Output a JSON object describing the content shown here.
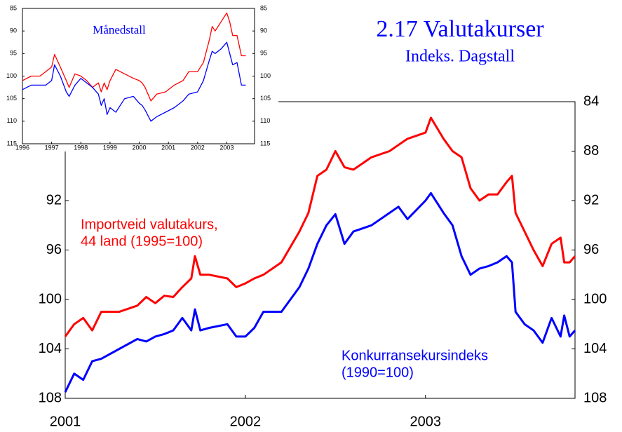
{
  "chart_data": [
    {
      "type": "line",
      "title": "2.17 Valutakurser",
      "subtitle": "Indeks. Dagstall",
      "x": [
        2001.0,
        2001.05,
        2001.1,
        2001.15,
        2001.2,
        2001.3,
        2001.4,
        2001.45,
        2001.5,
        2001.55,
        2001.6,
        2001.65,
        2001.7,
        2001.72,
        2001.75,
        2001.8,
        2001.9,
        2001.95,
        2002.0,
        2002.05,
        2002.1,
        2002.2,
        2002.3,
        2002.35,
        2002.4,
        2002.45,
        2002.5,
        2002.55,
        2002.6,
        2002.7,
        2002.8,
        2002.85,
        2002.9,
        2003.0,
        2003.03,
        2003.1,
        2003.15,
        2003.2,
        2003.25,
        2003.3,
        2003.35,
        2003.4,
        2003.45,
        2003.48,
        2003.5,
        2003.55,
        2003.6,
        2003.65,
        2003.7,
        2003.75,
        2003.77,
        2003.8,
        2003.83
      ],
      "xlim": [
        2001,
        2003.83
      ],
      "xticks": [
        2001,
        2002,
        2003
      ],
      "ylim": [
        84,
        108
      ],
      "y_inverted": true,
      "yticks": [
        92,
        96,
        100,
        104,
        108
      ],
      "y2lim": [
        84,
        108
      ],
      "y2ticks": [
        84,
        88,
        92,
        96,
        100,
        104,
        108
      ],
      "series": [
        {
          "label_lines": [
            "Importveid valutakurs,",
            "44 land (1995=100)"
          ],
          "color": "#ff0000",
          "values": [
            103,
            102,
            101.5,
            102.5,
            101,
            101,
            100.5,
            99.8,
            100.3,
            99.7,
            99.8,
            99,
            98.3,
            96.5,
            98,
            98,
            98.3,
            99,
            98.7,
            98.3,
            98,
            97,
            94.5,
            93,
            90,
            89.5,
            88,
            89.3,
            89.5,
            88.5,
            88,
            87.5,
            87,
            86.5,
            85.3,
            87,
            88,
            88.5,
            91,
            92,
            91.5,
            91.5,
            90.5,
            90,
            93,
            94.5,
            96,
            97.3,
            95.5,
            95,
            97,
            97,
            96.5
          ]
        },
        {
          "label_lines": [
            "Konkurransekursindeks",
            "(1990=100)"
          ],
          "color": "#0000ff",
          "values": [
            107.5,
            106,
            106.5,
            105,
            104.8,
            104,
            103.2,
            103.4,
            103,
            102.8,
            102.5,
            101.5,
            102.5,
            100.8,
            102.5,
            102.3,
            102,
            103,
            103,
            102.3,
            101,
            101,
            99,
            97.5,
            95.5,
            94,
            93.1,
            95.5,
            94.5,
            94,
            93,
            92.5,
            93.5,
            92,
            91.4,
            93,
            94,
            96.5,
            98,
            97.5,
            97.3,
            97,
            96.5,
            97,
            101,
            102,
            102.5,
            103.5,
            101.5,
            103,
            101.3,
            103,
            102.5
          ]
        }
      ]
    },
    {
      "type": "line",
      "annotation": "Månedstall",
      "x": [
        1996.0,
        1996.3,
        1996.6,
        1996.8,
        1997.0,
        1997.1,
        1997.3,
        1997.5,
        1997.6,
        1997.8,
        1998.0,
        1998.2,
        1998.4,
        1998.6,
        1998.7,
        1998.8,
        1998.9,
        1999.0,
        1999.2,
        1999.5,
        1999.8,
        2000.0,
        2000.1,
        2000.2,
        2000.4,
        2000.6,
        2000.9,
        2001.2,
        2001.5,
        2001.7,
        2002.0,
        2002.2,
        2002.4,
        2002.5,
        2002.6,
        2002.8,
        2003.0,
        2003.1,
        2003.2,
        2003.35,
        2003.5,
        2003.65
      ],
      "xlim": [
        1996,
        2003.95
      ],
      "xticks": [
        1996,
        1997,
        1998,
        1999,
        2000,
        2001,
        2002,
        2003
      ],
      "ylim": [
        85,
        115
      ],
      "y_inverted": true,
      "yticks": [
        85,
        90,
        95,
        100,
        105,
        110,
        115
      ],
      "y2lim": [
        85,
        115
      ],
      "y2ticks": [
        85,
        90,
        95,
        100,
        105,
        110,
        115
      ],
      "series": [
        {
          "color": "#ff0000",
          "values": [
            101,
            100,
            100,
            99,
            98,
            95.2,
            98,
            101,
            102.5,
            99.5,
            100,
            101,
            102.5,
            101.5,
            103.5,
            101.5,
            103,
            101,
            98.5,
            99.5,
            100.5,
            101,
            101.5,
            102.5,
            105.5,
            104,
            103.5,
            102,
            101,
            99,
            99,
            97,
            92,
            89,
            90,
            88,
            86,
            88,
            91,
            91,
            95.5,
            95.5
          ]
        },
        {
          "color": "#0000ff",
          "values": [
            103,
            102,
            102,
            102,
            101,
            97.5,
            100,
            103.5,
            104.5,
            102,
            100.5,
            101.5,
            102.5,
            104,
            106.5,
            105,
            108.5,
            107,
            108,
            105,
            104.5,
            106,
            106.5,
            107.5,
            110,
            109,
            108,
            107,
            105.5,
            104,
            103.5,
            101,
            96.5,
            94.5,
            95,
            94,
            92.5,
            95,
            97.5,
            97,
            102,
            102
          ]
        }
      ]
    }
  ]
}
